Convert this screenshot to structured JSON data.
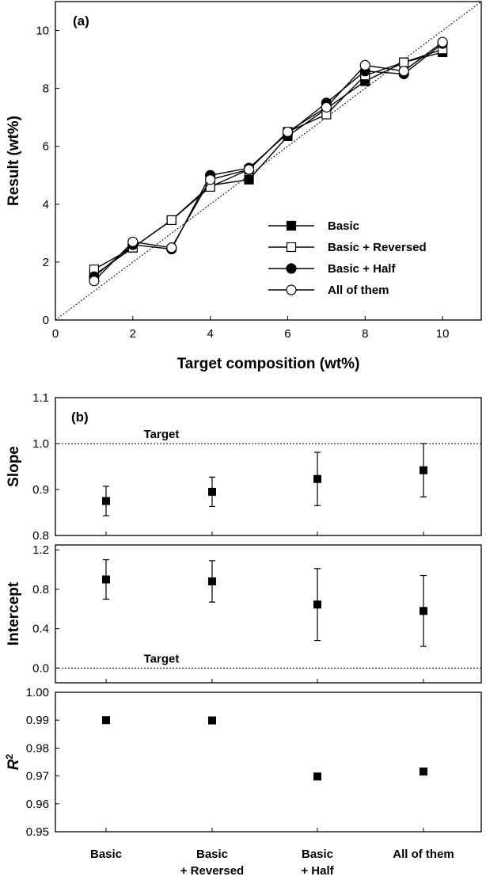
{
  "colors": {
    "ink": "#000000",
    "background": "#ffffff",
    "open_marker_fill": "#ffffff"
  },
  "chart_data": [
    {
      "type": "line",
      "panel_label": "(a)",
      "xlabel": "Target composition (wt%)",
      "ylabel": "Result (wt%)",
      "xlim": [
        0,
        11
      ],
      "ylim": [
        0,
        11
      ],
      "xticks": [
        0,
        2,
        4,
        6,
        8,
        10
      ],
      "yticks": [
        0,
        2,
        4,
        6,
        8,
        10
      ],
      "x": [
        1,
        2,
        3,
        4,
        5,
        6,
        7,
        8,
        9,
        10
      ],
      "reference_line": {
        "style": "dotted",
        "y_equals_x": true
      },
      "legend_position": "bottom-right",
      "series": [
        {
          "name": "Basic",
          "marker": "square-filled",
          "values": [
            1.55,
            2.5,
            3.45,
            4.65,
            4.85,
            6.35,
            7.3,
            8.25,
            8.9,
            9.25
          ]
        },
        {
          "name": "Basic + Reversed",
          "marker": "square-open",
          "values": [
            1.75,
            2.5,
            3.45,
            4.6,
            5.2,
            6.5,
            7.1,
            8.45,
            8.9,
            9.35
          ]
        },
        {
          "name": "Basic + Half",
          "marker": "circle-filled",
          "values": [
            1.5,
            2.6,
            2.45,
            5.0,
            5.25,
            6.45,
            7.5,
            8.6,
            8.5,
            9.55
          ]
        },
        {
          "name": "All of them",
          "marker": "circle-open",
          "values": [
            1.35,
            2.7,
            2.5,
            4.85,
            5.2,
            6.5,
            7.35,
            8.8,
            8.6,
            9.6
          ]
        }
      ]
    },
    {
      "type": "scatter",
      "panel_label": "(b)",
      "categories": [
        "Basic",
        "Basic\n+ Reversed",
        "Basic\n+ Half",
        "All of them"
      ],
      "category_lines": [
        [
          "Basic"
        ],
        [
          "Basic",
          "+ Reversed"
        ],
        [
          "Basic",
          "+ Half"
        ],
        [
          "All of them"
        ]
      ],
      "subplots": [
        {
          "ylabel": "Slope",
          "ylim": [
            0.8,
            1.1
          ],
          "yticks": [
            "0.8",
            "0.9",
            "1.0",
            "1.1"
          ],
          "target": {
            "label": "Target",
            "value": 1.0
          },
          "values": [
            0.875,
            0.895,
            0.923,
            0.942
          ],
          "error": [
            0.032,
            0.032,
            0.058,
            0.058
          ]
        },
        {
          "ylabel": "Intercept",
          "ylim": [
            -0.15,
            1.25
          ],
          "yticks": [
            "0.0",
            "0.4",
            "0.8",
            "1.2"
          ],
          "target": {
            "label": "Target",
            "value": 0.0
          },
          "values": [
            0.9,
            0.88,
            0.645,
            0.58
          ],
          "error": [
            0.2,
            0.21,
            0.365,
            0.36
          ]
        },
        {
          "ylabel": "R",
          "ylabel_superscript": "2",
          "ylim": [
            0.95,
            1.0
          ],
          "yticks": [
            "0.95",
            "0.96",
            "0.97",
            "0.98",
            "0.99",
            "1.00"
          ],
          "values": [
            0.99,
            0.9899,
            0.9698,
            0.9716
          ]
        }
      ]
    }
  ]
}
